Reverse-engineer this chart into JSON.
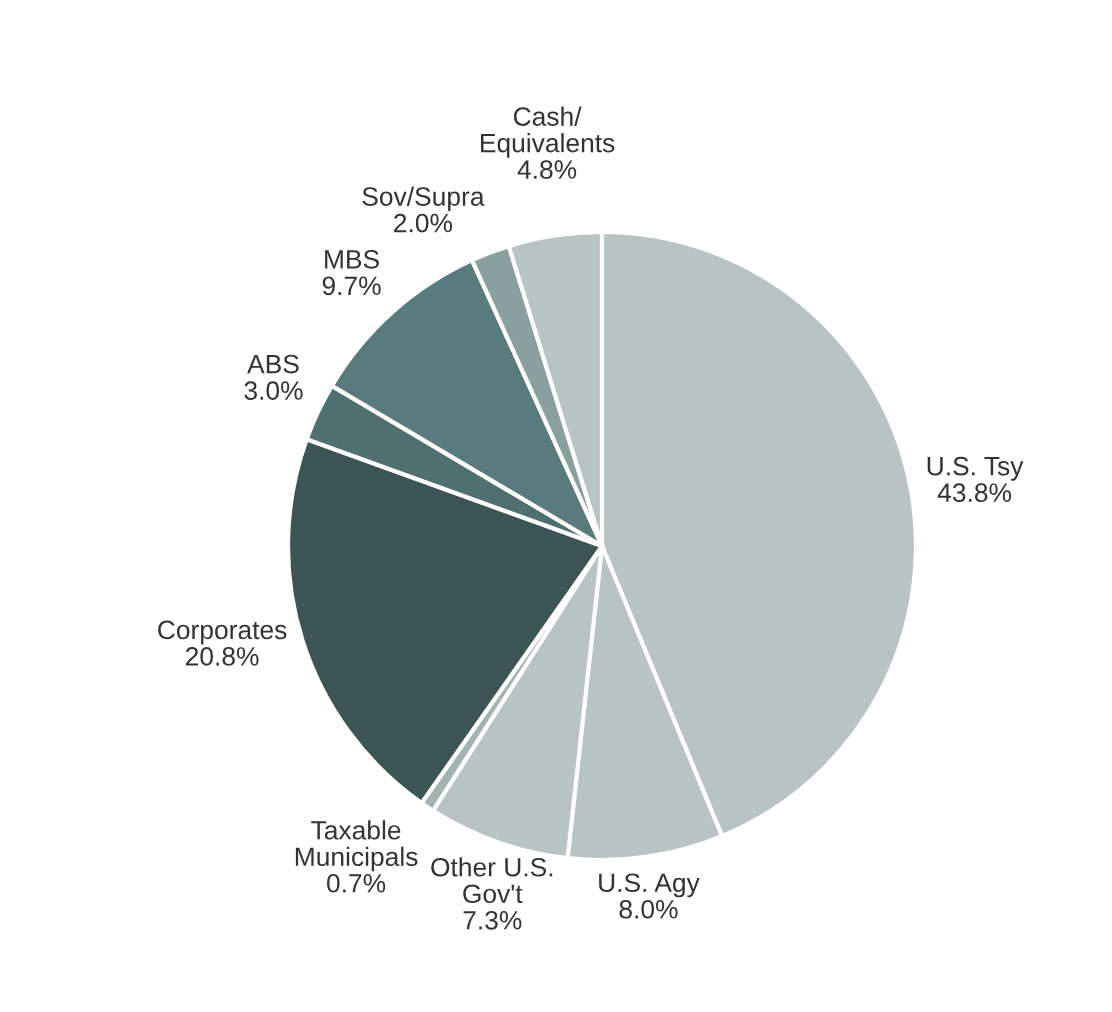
{
  "chart_data": {
    "type": "pie",
    "categories": [
      "U.S. Tsy",
      "U.S. Agy",
      "Other U.S.\nGov't",
      "Taxable\nMunicipals",
      "Corporates",
      "ABS",
      "MBS",
      "Sov/Supra",
      "Cash/\nEquivalents"
    ],
    "values": [
      43.8,
      8.0,
      7.3,
      0.7,
      20.8,
      3.0,
      9.7,
      2.0,
      4.8
    ],
    "value_labels": [
      "43.8%",
      "8.0%",
      "7.3%",
      "0.7%",
      "20.8%",
      "3.0%",
      "9.7%",
      "2.0%",
      "4.8%"
    ],
    "colors": [
      "#b8c4c4",
      "#b8c4c4",
      "#b8c4c4",
      "#a3b3b3",
      "#3c5456",
      "#4f6f71",
      "#5a7b7d",
      "#8a9f9f",
      "#b8c4c4"
    ]
  }
}
